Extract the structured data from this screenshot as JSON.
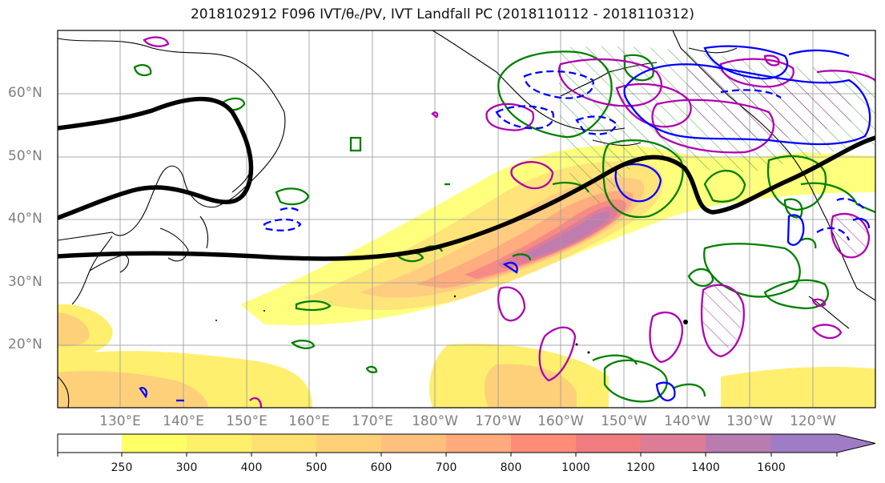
{
  "title": {
    "text": "2018102912 F096 IVT/θₑ/PV, IVT Landfall PC (2018110112 - 2018110312)"
  },
  "map": {
    "lat_labels": [
      "60°N",
      "50°N",
      "40°N",
      "30°N",
      "20°N"
    ],
    "lon_labels": [
      "130°E",
      "140°E",
      "150°E",
      "160°E",
      "170°E",
      "180°W",
      "170°W",
      "160°W",
      "150°W",
      "140°W",
      "130°W",
      "120°W"
    ],
    "colors": {
      "coast": "#000000",
      "grid": "#a0a0a0",
      "theta_e_contour": "#000000",
      "pv_positive": "#b000b0",
      "pv_negative": "#0000ff",
      "landfall_pc": "#008000",
      "frame": "#000000"
    }
  },
  "colorbar": {
    "levels": [
      "250",
      "300",
      "400",
      "500",
      "600",
      "700",
      "800",
      "1000",
      "1200",
      "1400",
      "1600"
    ],
    "colors": [
      "#ffff66",
      "#fff06a",
      "#ffe070",
      "#ffd078",
      "#ffc07e",
      "#ffaa7c",
      "#ff8c78",
      "#f07c82",
      "#dc7c96",
      "#b87cb0",
      "#a07cc6"
    ],
    "extend": "max"
  }
}
